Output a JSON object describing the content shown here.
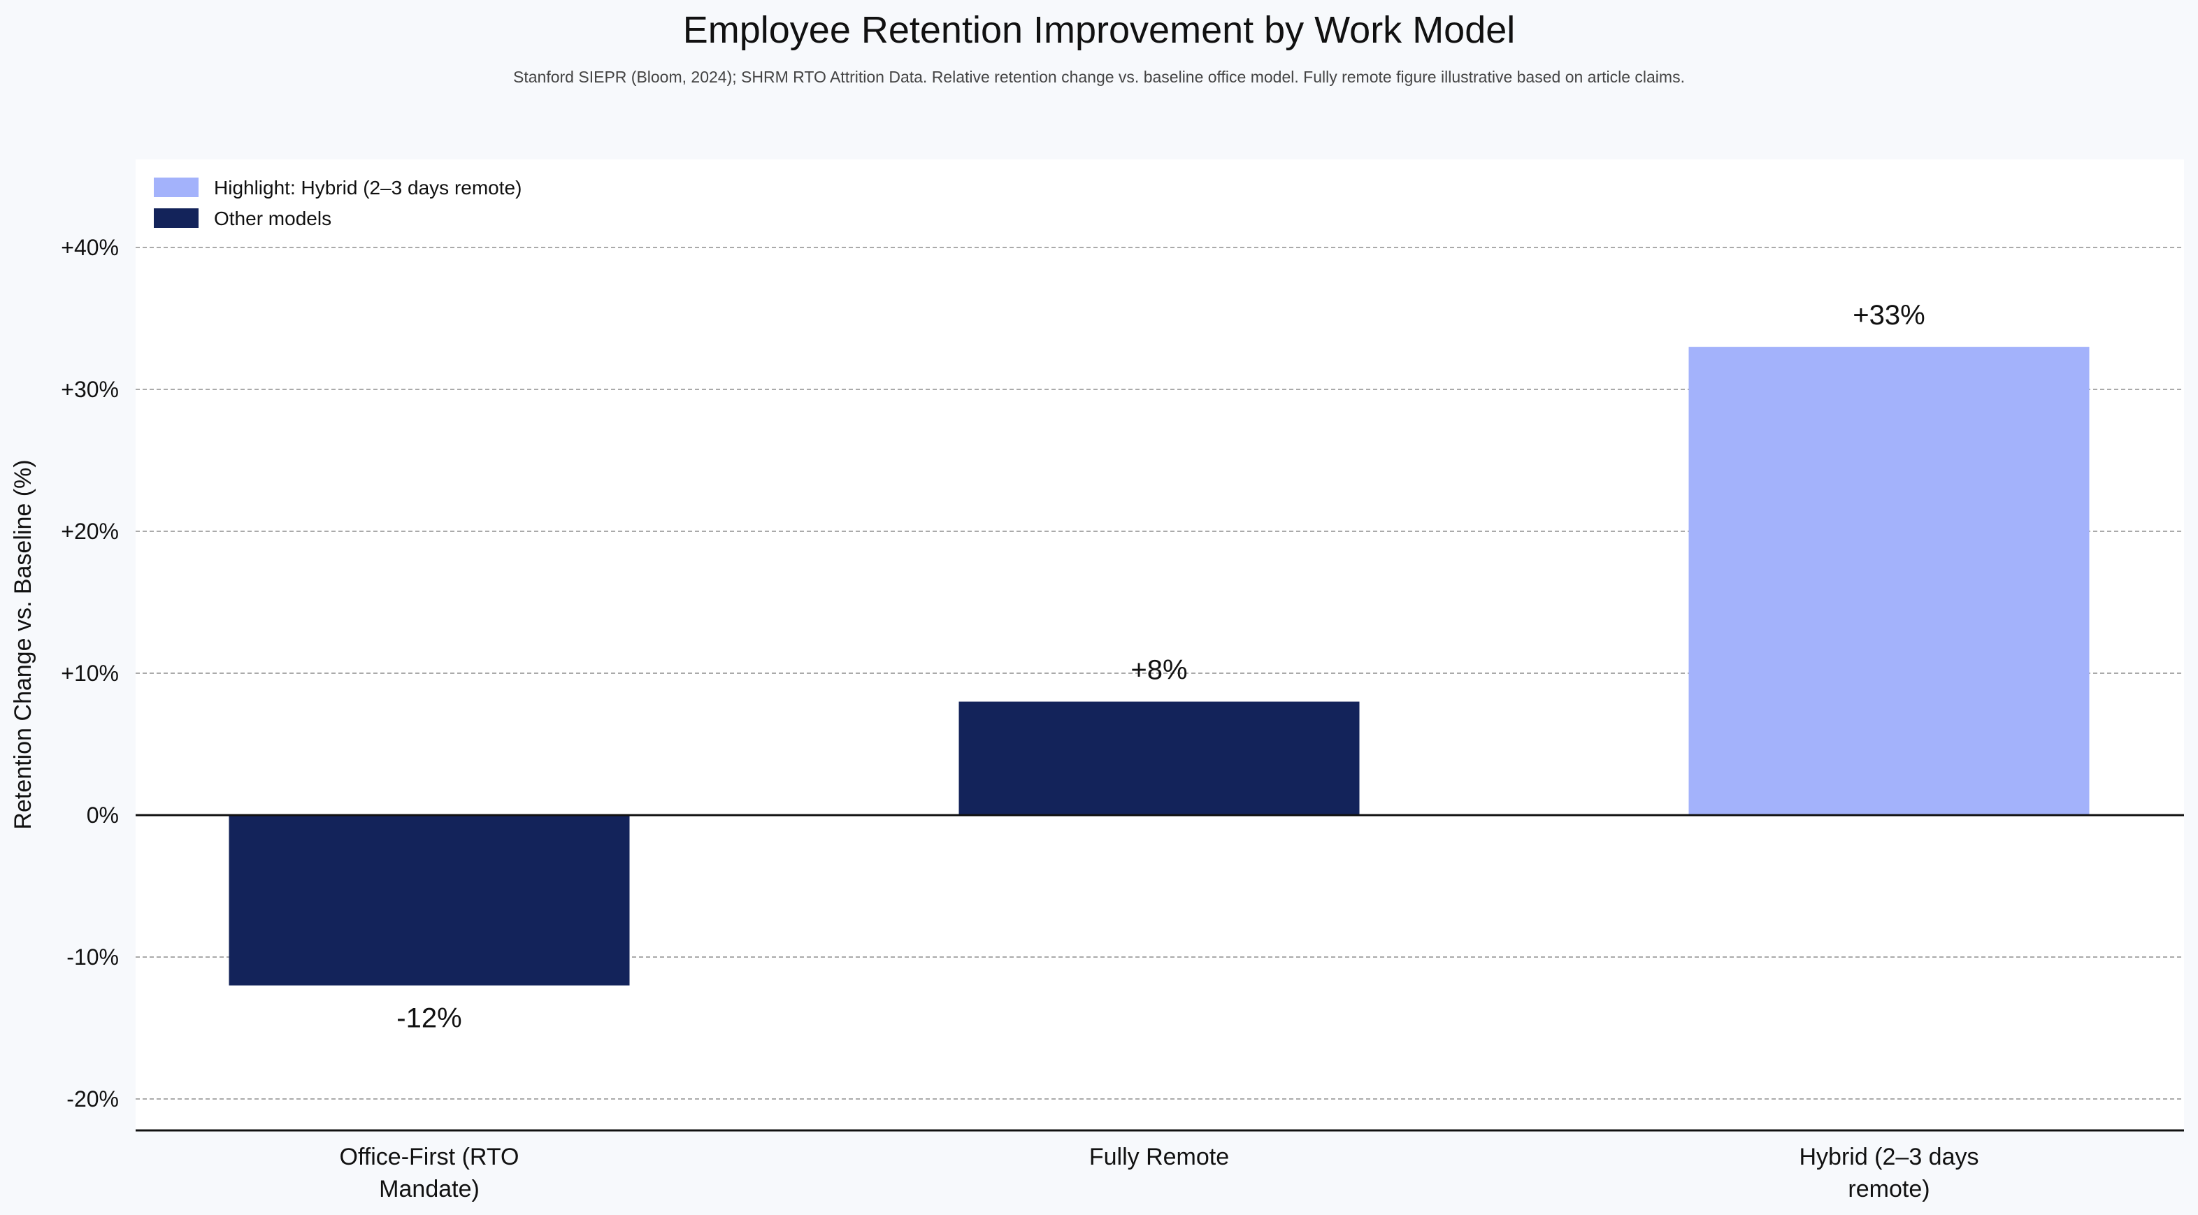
{
  "chart_data": {
    "type": "bar",
    "title": "Employee Retention Improvement by Work Model",
    "subtitle": "Stanford SIEPR (Bloom, 2024); SHRM RTO Attrition Data. Relative retention change vs. baseline office model. Fully remote figure illustrative based on article claims.",
    "xlabel": "",
    "ylabel": "Retention Change vs. Baseline (%)",
    "ylim": [
      -22,
      46
    ],
    "yticks": [
      -20,
      -10,
      0,
      10,
      20,
      30,
      40
    ],
    "ytick_labels": [
      "-20%",
      "-10%",
      "0%",
      "+10%",
      "+20%",
      "+30%",
      "+40%"
    ],
    "grid": true,
    "legend_position": "top-left",
    "categories": [
      [
        "Office-First (RTO",
        "Mandate)"
      ],
      [
        "Fully Remote"
      ],
      [
        "Hybrid (2–3 days",
        "remote)"
      ]
    ],
    "values": [
      -12,
      8,
      33
    ],
    "value_labels": [
      "-12%",
      "+8%",
      "+33%"
    ],
    "highlight_index": 2,
    "colors": {
      "highlight": "#a3b2fb",
      "other": "#13235a",
      "grid": "#aaaaaa",
      "axis": "#111111",
      "plot_background": "#ffffff"
    },
    "legend": [
      {
        "label": "Highlight: Hybrid (2–3 days remote)",
        "color_key": "highlight"
      },
      {
        "label": "Other models",
        "color_key": "other"
      }
    ]
  }
}
